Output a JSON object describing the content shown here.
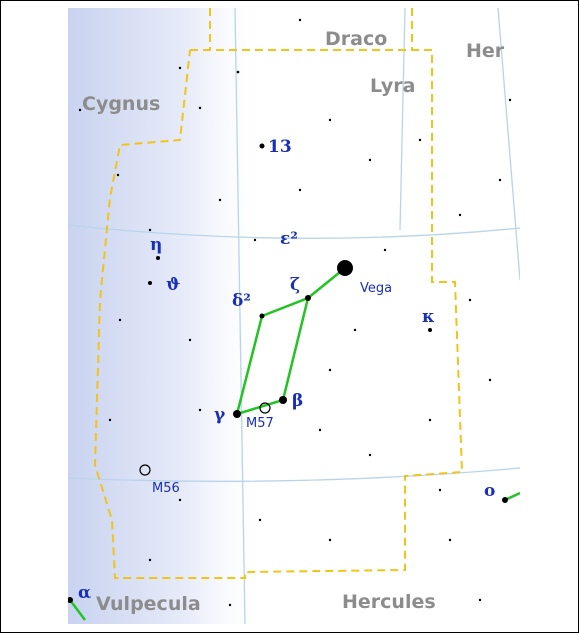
{
  "constellations": [
    "Draco",
    "Her",
    "Lyra",
    "Cygnus",
    "Vulpecula",
    "Hercules"
  ],
  "stars": [
    "13",
    "ε²",
    "η",
    "ϑ",
    "δ²",
    "ζ",
    "Vega",
    "κ",
    "γ",
    "β",
    "M57",
    "M56",
    "ο",
    "α"
  ]
}
